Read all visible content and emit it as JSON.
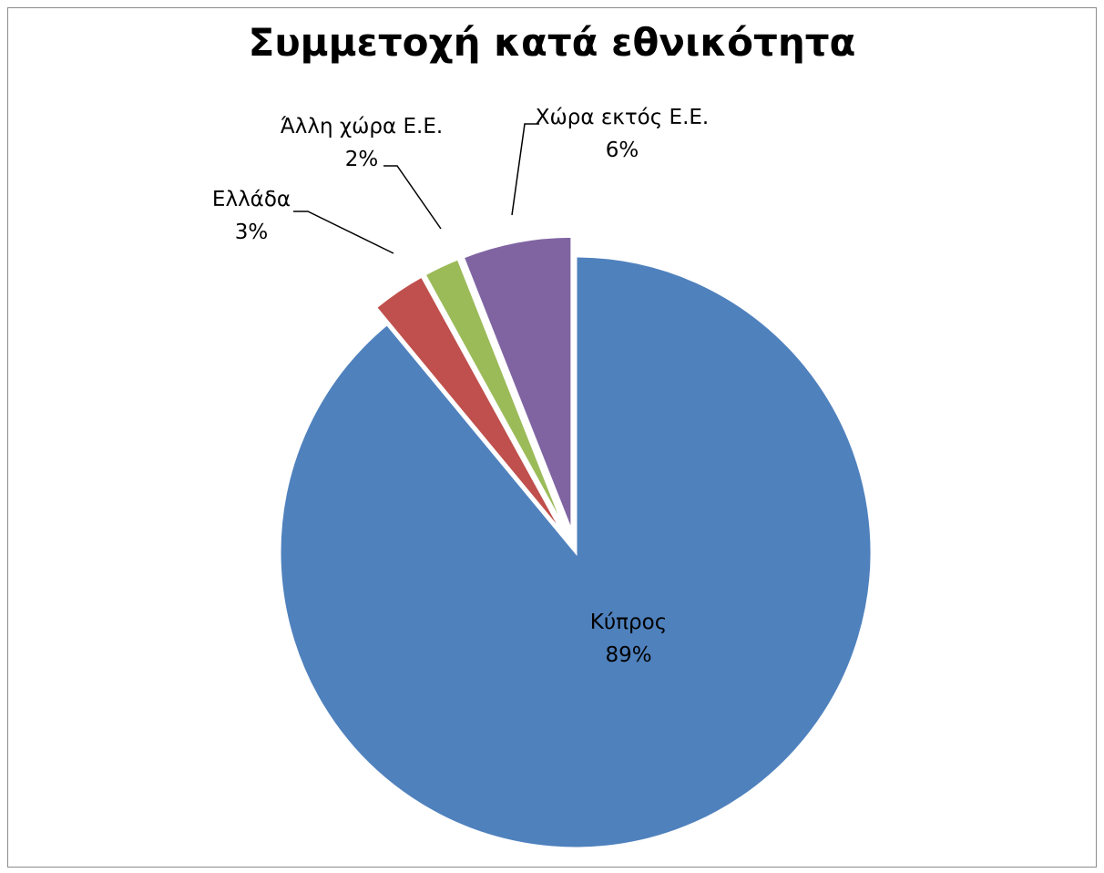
{
  "chart_data": {
    "type": "pie",
    "title": "Συμμετοχή κατά εθνικότητα",
    "slices": [
      {
        "label": "Κύπρος",
        "value": 89,
        "percent_label": "89%",
        "color": "#4F81BD",
        "exploded": false
      },
      {
        "label": "Ελλάδα",
        "value": 3,
        "percent_label": "3%",
        "color": "#C0504D",
        "exploded": true
      },
      {
        "label": "Άλλη χώρα Ε.Ε.",
        "value": 2,
        "percent_label": "2%",
        "color": "#9BBB59",
        "exploded": true
      },
      {
        "label": "Χώρα εκτός Ε.Ε.",
        "value": 6,
        "percent_label": "6%",
        "color": "#8064A2",
        "exploded": true
      }
    ],
    "legend": "none",
    "data_labels": "category and percentage"
  }
}
